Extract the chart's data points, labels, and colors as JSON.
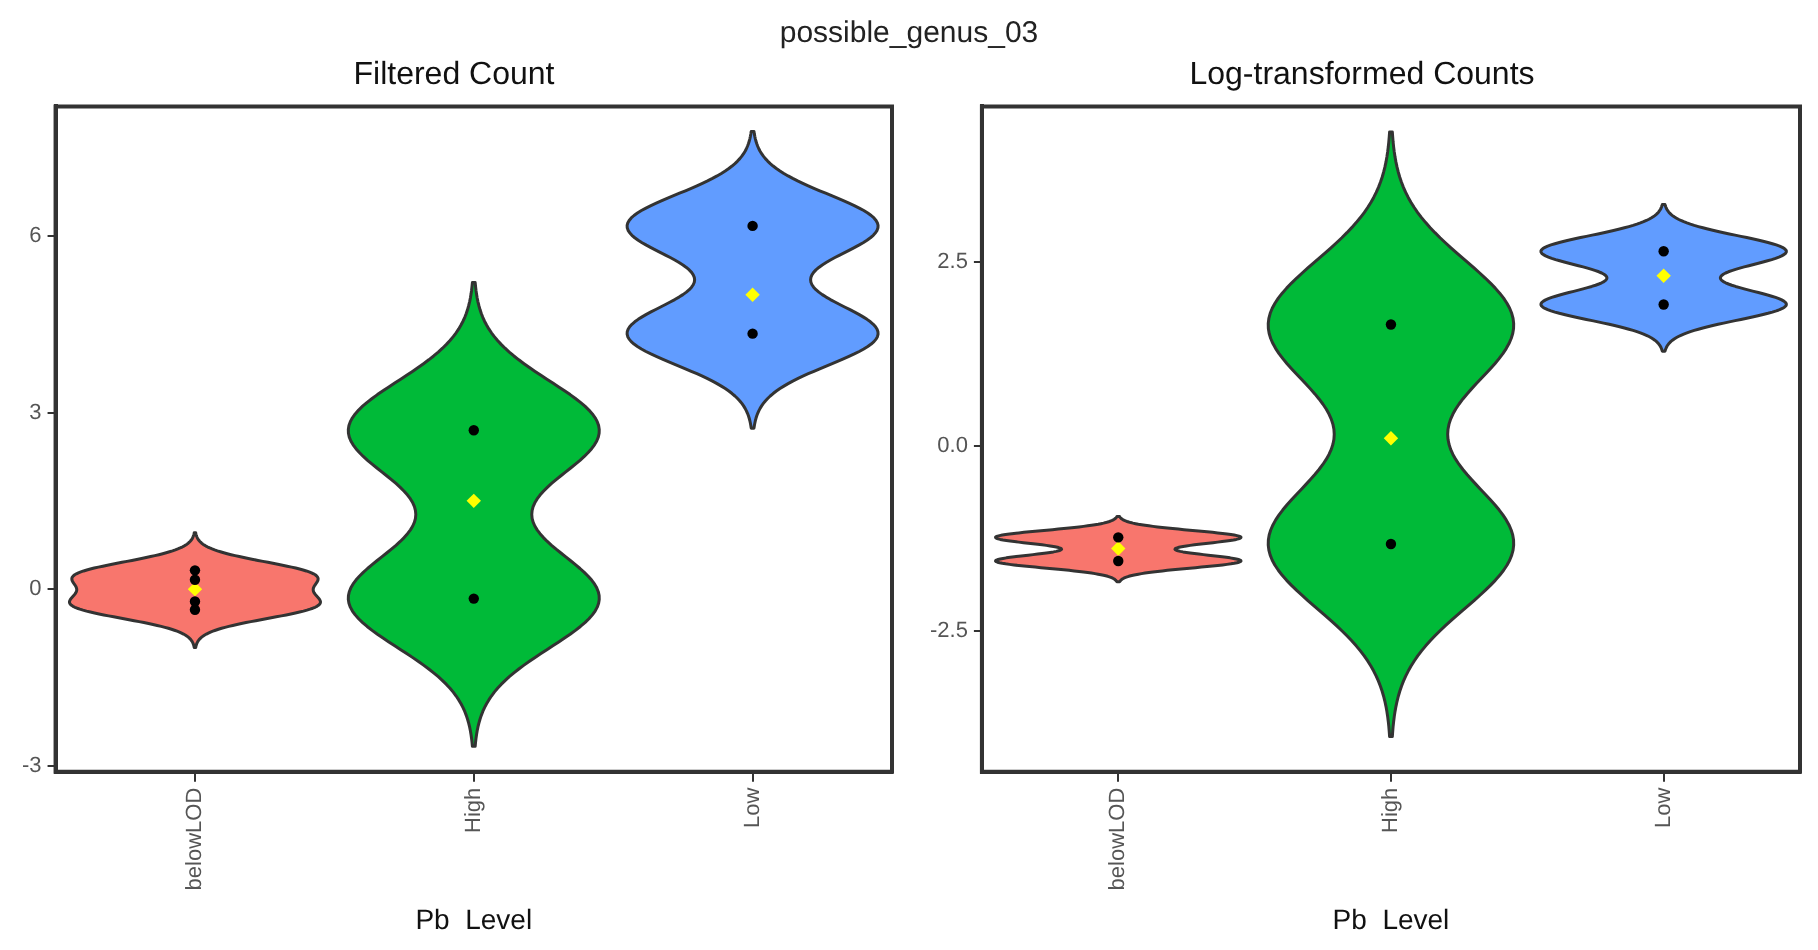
{
  "chart_data": [
    {
      "type": "scatter",
      "title": "Filtered Count",
      "xlabel": "Pb  Level",
      "annotations": [
        "possible_genus_03"
      ],
      "categories": [
        "belowLOD",
        "High",
        "Low"
      ],
      "colors": [
        "#f8766d",
        "#00ba38",
        "#619cff"
      ],
      "ylim": [
        -3.1,
        8.2
      ],
      "yticks": [
        -3,
        0,
        3,
        6
      ],
      "grid": false,
      "legend": false,
      "series": [
        {
          "color": "#000000",
          "marker": "circle",
          "x": [
            "belowLOD",
            "belowLOD",
            "belowLOD",
            "belowLOD",
            "High",
            "High",
            "Low",
            "Low"
          ],
          "values": [
            0.32,
            0.16,
            -0.21,
            -0.35,
            2.7,
            -0.16,
            6.17,
            4.34
          ]
        },
        {
          "color": "#ffff00",
          "marker": "diamond",
          "x": [
            "belowLOD",
            "High",
            "Low"
          ],
          "values": [
            0,
            1.5,
            5.0
          ]
        }
      ]
    },
    {
      "type": "scatter",
      "title": "Log-transformed Counts",
      "xlabel": "Pb  Level",
      "categories": [
        "belowLOD",
        "High",
        "Low"
      ],
      "colors": [
        "#f8766d",
        "#00ba38",
        "#619cff"
      ],
      "ylim": [
        -4.4,
        4.6
      ],
      "yticks": [
        -2.5,
        {
          "value": 0,
          "label": "0.0"
        },
        2.5
      ],
      "grid": false,
      "legend": false,
      "series": [
        {
          "color": "#000000",
          "marker": "circle",
          "x": [
            "belowLOD",
            "belowLOD",
            "High",
            "High",
            "Low",
            "Low"
          ],
          "values": [
            -1.23,
            -1.55,
            1.65,
            -1.32,
            2.64,
            1.92
          ]
        },
        {
          "color": "#ffff00",
          "marker": "diamond",
          "x": [
            "belowLOD",
            "High",
            "Low"
          ],
          "values": [
            -1.38,
            0.11,
            2.31
          ]
        }
      ]
    }
  ]
}
